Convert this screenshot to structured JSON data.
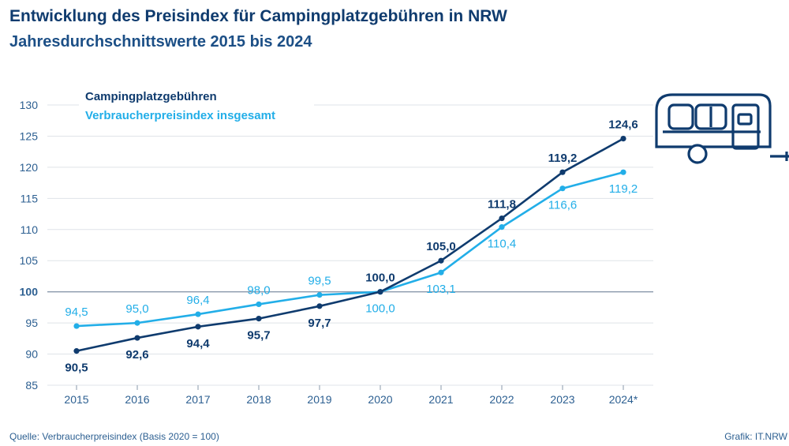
{
  "header": {
    "title": "Entwicklung des Preisindex für Campingplatzgebühren in NRW",
    "subtitle": "Jahresdurchschnittswerte 2015 bis 2024"
  },
  "footer": {
    "source": "Quelle: Verbraucherpreisindex (Basis 2020 = 100)",
    "credit": "Grafik: IT.NRW"
  },
  "icons": [
    "caravan-icon"
  ],
  "colors": {
    "camping": "#0f3b6e",
    "vpi": "#22aee8",
    "axis_text": "#2c5f91",
    "grid": "#dfe3e8"
  },
  "chart_data": {
    "type": "line",
    "categories": [
      "2015",
      "2016",
      "2017",
      "2018",
      "2019",
      "2020",
      "2021",
      "2022",
      "2023",
      "2024*"
    ],
    "series": [
      {
        "name": "Campingplatzgebühren",
        "values": [
          90.5,
          92.6,
          94.4,
          95.7,
          97.7,
          100.0,
          105.0,
          111.8,
          119.2,
          124.6
        ],
        "labels": [
          "90,5",
          "92,6",
          "94,4",
          "95,7",
          "97,7",
          "100,0",
          "105,0",
          "111,8",
          "119,2",
          "124,6"
        ]
      },
      {
        "name": "Verbraucherpreisindex insgesamt",
        "values": [
          94.5,
          95.0,
          96.4,
          98.0,
          99.5,
          100.0,
          103.1,
          110.4,
          116.6,
          119.2
        ],
        "labels": [
          "94,5",
          "95,0",
          "96,4",
          "98,0",
          "99,5",
          "100,0",
          "103,1",
          "110,4",
          "116,6",
          "119,2"
        ]
      }
    ],
    "yticks": [
      85,
      90,
      95,
      100,
      105,
      110,
      115,
      120,
      125,
      130
    ],
    "ylim": [
      85,
      130
    ],
    "xlabel": "",
    "ylabel": "",
    "grid": true,
    "legend_position": "top-left"
  }
}
